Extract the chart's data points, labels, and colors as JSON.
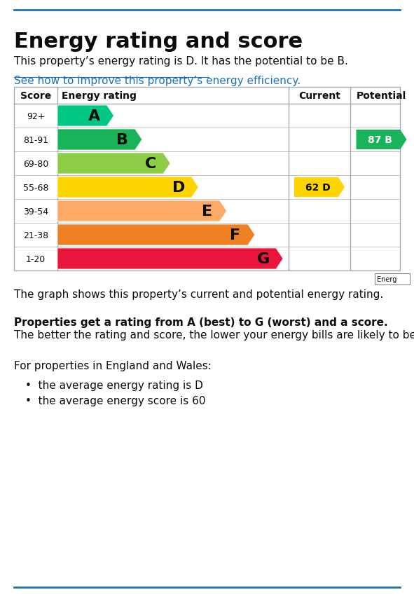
{
  "title": "Energy rating and score",
  "subtitle": "This property’s energy rating is D. It has the potential to be B.",
  "link_text": "See how to improve this property’s energy efficiency.",
  "col_headers": [
    "Score",
    "Energy rating",
    "Current",
    "Potential"
  ],
  "ratings": [
    {
      "label": "A",
      "score_range": "92+",
      "color": "#00c781"
    },
    {
      "label": "B",
      "score_range": "81-91",
      "color": "#19b459"
    },
    {
      "label": "C",
      "score_range": "69-80",
      "color": "#8dce46"
    },
    {
      "label": "D",
      "score_range": "55-68",
      "color": "#ffd500"
    },
    {
      "label": "E",
      "score_range": "39-54",
      "color": "#fcaa65"
    },
    {
      "label": "F",
      "score_range": "21-38",
      "color": "#ef8023"
    },
    {
      "label": "G",
      "score_range": "1-20",
      "color": "#e9153b"
    }
  ],
  "current": {
    "value": 62,
    "label": "D",
    "row": 3,
    "color": "#ffd500"
  },
  "potential": {
    "value": 87,
    "label": "B",
    "row": 1,
    "color": "#19b459"
  },
  "graph_label": "The graph shows this property’s current and potential energy rating.",
  "bold_text": "Properties get a rating from A (best) to G (worst) and a score.",
  "normal_text": "The better the rating and score, the lower your energy bills are likely to be.",
  "for_properties_text": "For properties in England and Wales:",
  "bullet1": "the average energy rating is D",
  "bullet2": "the average energy score is 60",
  "top_line_color": "#1d70b8",
  "bottom_line_color": "#1d70b8",
  "link_color": "#1d70b8",
  "bg_color": "#ffffff",
  "text_color": "#0b0c0c",
  "small_box_text": "Energ"
}
